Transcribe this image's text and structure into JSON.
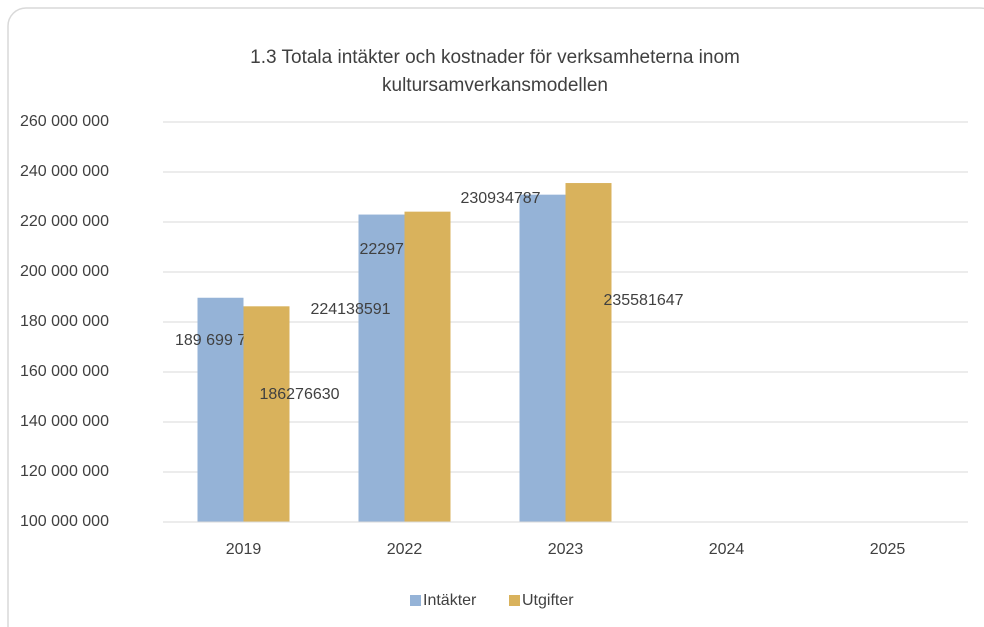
{
  "chart_data": {
    "type": "bar",
    "title": [
      "1.3 Totala intäkter och kostnader för verksamheterna inom",
      "kultursamverkansmodellen"
    ],
    "categories": [
      "2019",
      "2022",
      "2023",
      "2024",
      "2025"
    ],
    "series": [
      {
        "name": "Intäkter",
        "color": "#95b3d7",
        "values": [
          189699715,
          222977458,
          230934787,
          null,
          null
        ],
        "value_labels": [
          "189 699 715",
          "222977458",
          "230934787",
          null,
          null
        ]
      },
      {
        "name": "Utgifter",
        "color": "#d9b25c",
        "values": [
          186276630,
          224138591,
          235581647,
          null,
          null
        ],
        "value_labels": [
          "186276630",
          "224138591",
          "235581647",
          null,
          null
        ]
      }
    ],
    "ylim": [
      100000000,
      260000000
    ],
    "yticks": [
      {
        "value": 100000000,
        "label": "100 000 000"
      },
      {
        "value": 120000000,
        "label": "120 000 000"
      },
      {
        "value": 140000000,
        "label": "140 000 000"
      },
      {
        "value": 160000000,
        "label": "160 000 000"
      },
      {
        "value": 180000000,
        "label": "180 000 000"
      },
      {
        "value": 200000000,
        "label": "200 000 000"
      },
      {
        "value": 220000000,
        "label": "220 000 000"
      },
      {
        "value": 240000000,
        "label": "240 000 000"
      },
      {
        "value": 260000000,
        "label": "260 000 000"
      }
    ],
    "grid": true,
    "legend": "bottom"
  }
}
